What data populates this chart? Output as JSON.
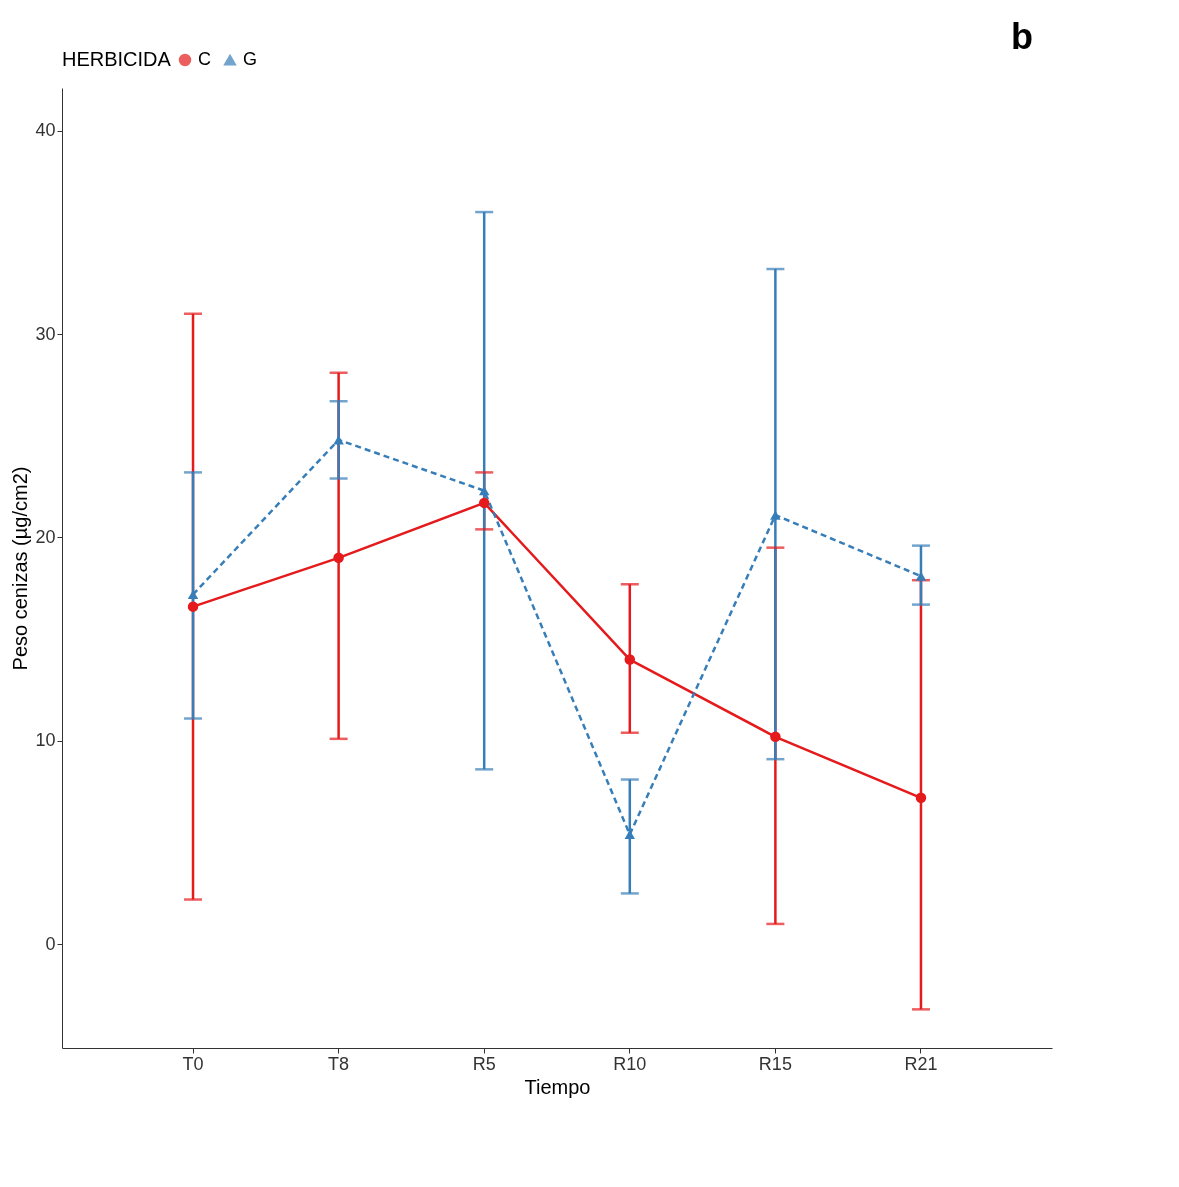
{
  "chart_data": {
    "type": "line",
    "xlabel": "Tiempo",
    "ylabel": "Peso cenizas (µg/cm2)",
    "legend_title": "HERBICIDA",
    "legend": "top",
    "grid": false,
    "categories": [
      "T0",
      "T8",
      "R5",
      "R10",
      "R15",
      "R21"
    ],
    "ylim": [
      -5.1,
      42.1
    ],
    "yticks": [
      0,
      10,
      20,
      30,
      40
    ],
    "annotations": [
      "b"
    ],
    "series": [
      {
        "name": "C",
        "color": "#e41a1c",
        "marker": "circle",
        "line_style": "solid",
        "values": [
          16.6,
          19.0,
          21.7,
          14.0,
          10.2,
          7.2
        ],
        "errors": [
          [
            2.2,
            31.0
          ],
          [
            10.1,
            28.1
          ],
          [
            20.4,
            23.2
          ],
          [
            10.4,
            17.7
          ],
          [
            1.0,
            19.5
          ],
          [
            -3.2,
            17.9
          ]
        ]
      },
      {
        "name": "G",
        "color": "#377eb8",
        "marker": "triangle",
        "line_style": "dashed",
        "values": [
          17.2,
          24.8,
          22.3,
          5.4,
          21.1,
          18.1
        ],
        "errors": [
          [
            11.1,
            23.2
          ],
          [
            22.9,
            26.7
          ],
          [
            8.6,
            36.0
          ],
          [
            2.5,
            8.1
          ],
          [
            9.1,
            33.2
          ],
          [
            16.7,
            19.6
          ]
        ]
      }
    ]
  }
}
